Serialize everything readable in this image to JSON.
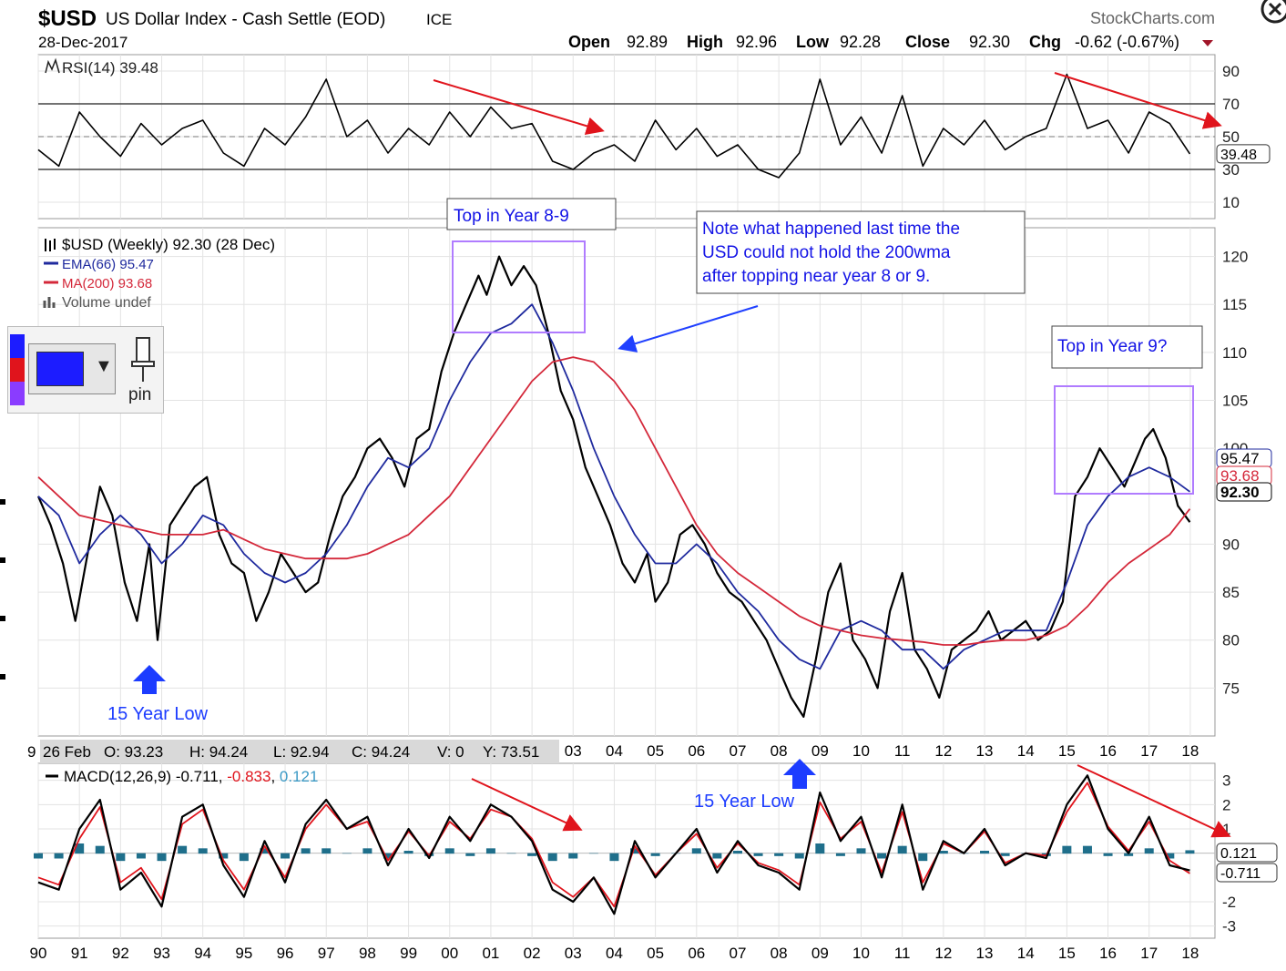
{
  "header": {
    "symbol": "$USD",
    "name": "US Dollar Index - Cash Settle (EOD)",
    "exchange": "ICE",
    "date": "28-Dec-2017",
    "brand": "StockCharts.com",
    "ohlc": {
      "open_label": "Open",
      "open": "92.89",
      "high_label": "High",
      "high": "92.96",
      "low_label": "Low",
      "low": "92.28",
      "close_label": "Close",
      "close": "92.30",
      "chg_label": "Chg",
      "chg": "-0.62 (-0.67%)"
    }
  },
  "toolbar": {
    "pin_label": "pin",
    "colors": [
      "#1c1cff",
      "#e0141c",
      "#8a3cff"
    ]
  },
  "chart_data": [
    {
      "id": "rsi",
      "type": "line",
      "title": "RSI(14) 39.48",
      "ylim": [
        0,
        100
      ],
      "ticks": [
        "90",
        "70",
        "50",
        "30",
        "10"
      ],
      "tick_values": [
        90,
        70,
        50,
        30,
        10
      ],
      "reference_lines": [
        70,
        30
      ],
      "midline": 50,
      "last_value_label": "39.48",
      "x": [
        1990.0,
        1990.5,
        1991.0,
        1991.5,
        1992.0,
        1992.5,
        1993.0,
        1993.5,
        1994.0,
        1994.5,
        1995.0,
        1995.5,
        1996.0,
        1996.5,
        1997.0,
        1997.5,
        1998.0,
        1998.5,
        1999.0,
        1999.5,
        2000.0,
        2000.5,
        2001.0,
        2001.5,
        2002.0,
        2002.5,
        2003.0,
        2003.5,
        2004.0,
        2004.5,
        2005.0,
        2005.5,
        2006.0,
        2006.5,
        2007.0,
        2007.5,
        2008.0,
        2008.5,
        2009.0,
        2009.5,
        2010.0,
        2010.5,
        2011.0,
        2011.5,
        2012.0,
        2012.5,
        2013.0,
        2013.5,
        2014.0,
        2014.5,
        2015.0,
        2015.5,
        2016.0,
        2016.5,
        2017.0,
        2017.5,
        2017.99
      ],
      "values": [
        42,
        32,
        65,
        50,
        38,
        58,
        45,
        55,
        60,
        40,
        32,
        55,
        45,
        62,
        85,
        50,
        60,
        40,
        55,
        45,
        65,
        50,
        68,
        55,
        58,
        35,
        30,
        40,
        45,
        35,
        60,
        42,
        55,
        38,
        45,
        30,
        25,
        40,
        85,
        45,
        62,
        40,
        75,
        32,
        55,
        45,
        60,
        42,
        50,
        55,
        88,
        55,
        60,
        40,
        65,
        58,
        39.48
      ]
    },
    {
      "id": "price",
      "type": "line",
      "title": "$USD (Weekly) 92.30 (28 Dec)",
      "ylim": [
        70,
        123
      ],
      "ticks": [
        "120",
        "115",
        "110",
        "105",
        "100",
        "90",
        "85",
        "80",
        "75"
      ],
      "tick_values": [
        120,
        115,
        110,
        105,
        100,
        90,
        85,
        80,
        75
      ],
      "x_ticks": [
        "90",
        "91",
        "92",
        "93",
        "94",
        "95",
        "96",
        "97",
        "98",
        "99",
        "00",
        "01",
        "02",
        "03",
        "04",
        "05",
        "06",
        "07",
        "08",
        "09",
        "10",
        "11",
        "12",
        "13",
        "14",
        "15",
        "16",
        "17",
        "18"
      ],
      "x_tick_values": [
        1990,
        1991,
        1992,
        1993,
        1994,
        1995,
        1996,
        1997,
        1998,
        1999,
        2000,
        2001,
        2002,
        2003,
        2004,
        2005,
        2006,
        2007,
        2008,
        2009,
        2010,
        2011,
        2012,
        2013,
        2014,
        2015,
        2016,
        2017,
        2018
      ],
      "legend": [
        {
          "label": "$USD (Weekly) 92.30 (28 Dec)",
          "color": "#000000"
        },
        {
          "label": "EMA(66) 95.47",
          "color": "#1f2a9e"
        },
        {
          "label": "MA(200) 93.68",
          "color": "#d4283a"
        },
        {
          "label": "Volume undef",
          "color": "#555555"
        }
      ],
      "price_labels": [
        "95.47",
        "93.68",
        "92.30"
      ],
      "series": [
        {
          "name": "$USD (Weekly)",
          "color": "#000000",
          "x": [
            1990.0,
            1990.3,
            1990.6,
            1990.9,
            1991.2,
            1991.5,
            1991.8,
            1992.1,
            1992.4,
            1992.7,
            1992.9,
            1993.2,
            1993.5,
            1993.8,
            1994.1,
            1994.4,
            1994.7,
            1995.0,
            1995.3,
            1995.6,
            1995.9,
            1996.2,
            1996.5,
            1996.8,
            1997.1,
            1997.4,
            1997.7,
            1998.0,
            1998.3,
            1998.6,
            1998.9,
            1999.2,
            1999.5,
            1999.8,
            2000.1,
            2000.4,
            2000.7,
            2000.9,
            2001.2,
            2001.5,
            2001.8,
            2002.1,
            2002.4,
            2002.7,
            2003.0,
            2003.3,
            2003.6,
            2003.9,
            2004.2,
            2004.5,
            2004.8,
            2005.0,
            2005.3,
            2005.6,
            2005.9,
            2006.2,
            2006.5,
            2006.8,
            2007.1,
            2007.4,
            2007.7,
            2008.0,
            2008.3,
            2008.6,
            2008.9,
            2009.2,
            2009.5,
            2009.8,
            2010.1,
            2010.4,
            2010.7,
            2011.0,
            2011.3,
            2011.6,
            2011.9,
            2012.2,
            2012.5,
            2012.8,
            2013.1,
            2013.4,
            2013.7,
            2014.0,
            2014.3,
            2014.6,
            2014.9,
            2015.2,
            2015.5,
            2015.8,
            2016.1,
            2016.4,
            2016.7,
            2016.9,
            2017.1,
            2017.4,
            2017.7,
            2017.99
          ],
          "values": [
            95,
            92,
            88,
            82,
            89,
            96,
            93,
            86,
            82,
            90,
            80,
            92,
            94,
            96,
            97,
            91,
            88,
            87,
            82,
            85,
            89,
            87,
            85,
            86,
            91,
            95,
            97,
            100,
            101,
            99,
            96,
            101,
            102,
            108,
            112,
            115,
            118,
            116,
            120,
            117,
            119,
            117,
            112,
            106,
            103,
            98,
            95,
            92,
            88,
            86,
            89,
            84,
            86,
            91,
            92,
            90,
            87,
            85,
            84,
            82,
            80,
            77,
            74,
            72,
            78,
            85,
            88,
            80,
            78,
            75,
            83,
            87,
            79,
            77,
            74,
            79,
            80,
            81,
            83,
            80,
            81,
            82,
            80,
            81,
            84,
            95,
            97,
            100,
            98,
            96,
            99,
            101,
            102,
            99,
            94,
            92.3
          ]
        },
        {
          "name": "EMA(66)",
          "color": "#1f2a9e",
          "x": [
            1990.0,
            1990.5,
            1991.0,
            1991.5,
            1992.0,
            1992.5,
            1993.0,
            1993.5,
            1994.0,
            1994.5,
            1995.0,
            1995.5,
            1996.0,
            1996.5,
            1997.0,
            1997.5,
            1998.0,
            1998.5,
            1999.0,
            1999.5,
            2000.0,
            2000.5,
            2001.0,
            2001.5,
            2002.0,
            2002.5,
            2003.0,
            2003.5,
            2004.0,
            2004.5,
            2005.0,
            2005.5,
            2006.0,
            2006.5,
            2007.0,
            2007.5,
            2008.0,
            2008.5,
            2009.0,
            2009.5,
            2010.0,
            2010.5,
            2011.0,
            2011.5,
            2012.0,
            2012.5,
            2013.0,
            2013.5,
            2014.0,
            2014.5,
            2015.0,
            2015.5,
            2016.0,
            2016.5,
            2017.0,
            2017.5,
            2017.99
          ],
          "values": [
            95,
            93,
            88,
            91,
            93,
            91,
            88,
            90,
            93,
            92,
            89,
            87,
            86,
            87,
            89,
            92,
            96,
            99,
            98,
            100,
            105,
            109,
            112,
            113,
            115,
            111,
            106,
            100,
            95,
            91,
            88,
            88,
            90,
            88,
            85,
            83,
            80,
            78,
            77,
            81,
            82,
            81,
            79,
            79,
            77,
            79,
            80,
            81,
            81,
            81,
            86,
            92,
            95,
            97,
            98,
            97,
            95.47
          ]
        },
        {
          "name": "MA(200)",
          "color": "#d4283a",
          "x": [
            1990.0,
            1990.5,
            1991.0,
            1991.5,
            1992.0,
            1992.5,
            1993.0,
            1993.5,
            1994.0,
            1994.5,
            1995.0,
            1995.5,
            1996.0,
            1996.5,
            1997.0,
            1997.5,
            1998.0,
            1998.5,
            1999.0,
            1999.5,
            2000.0,
            2000.5,
            2001.0,
            2001.5,
            2002.0,
            2002.5,
            2003.0,
            2003.5,
            2004.0,
            2004.5,
            2005.0,
            2005.5,
            2006.0,
            2006.5,
            2007.0,
            2007.5,
            2008.0,
            2008.5,
            2009.0,
            2009.5,
            2010.0,
            2010.5,
            2011.0,
            2011.5,
            2012.0,
            2012.5,
            2013.0,
            2013.5,
            2014.0,
            2014.5,
            2015.0,
            2015.5,
            2016.0,
            2016.5,
            2017.0,
            2017.5,
            2017.99
          ],
          "values": [
            97,
            95,
            93,
            92.5,
            92,
            91.5,
            91,
            91,
            91,
            91.5,
            90.5,
            89.5,
            89,
            88.5,
            88.5,
            88.5,
            89,
            90,
            91,
            93,
            95,
            98,
            101,
            104,
            107,
            109,
            109.5,
            109,
            107,
            104,
            100,
            96,
            92,
            89,
            87,
            85.5,
            84,
            82.5,
            81.5,
            81,
            80.5,
            80.2,
            80,
            79.8,
            79.5,
            79.5,
            79.8,
            80,
            80,
            80.5,
            81.5,
            83.5,
            86,
            88,
            89.5,
            91,
            93.68
          ]
        }
      ]
    },
    {
      "id": "macd",
      "type": "line",
      "title": "MACD(12,26,9)",
      "macd_label": "-0.711",
      "signal_label": "-0.833",
      "hist_label": "0.121",
      "ylim": [
        -3.5,
        3.7
      ],
      "ticks": [
        "3",
        "2",
        "1",
        "-2",
        "-3"
      ],
      "tick_values": [
        3,
        2,
        1,
        -2,
        -3
      ],
      "last_value_labels": [
        "0.121",
        "-0.711"
      ],
      "x_ticks": [
        "90",
        "91",
        "92",
        "93",
        "94",
        "95",
        "96",
        "97",
        "98",
        "99",
        "00",
        "01",
        "02",
        "03",
        "04",
        "05",
        "06",
        "07",
        "08",
        "09",
        "10",
        "11",
        "12",
        "13",
        "14",
        "15",
        "16",
        "17",
        "18"
      ],
      "x_tick_values": [
        1990,
        1991,
        1992,
        1993,
        1994,
        1995,
        1996,
        1997,
        1998,
        1999,
        2000,
        2001,
        2002,
        2003,
        2004,
        2005,
        2006,
        2007,
        2008,
        2009,
        2010,
        2011,
        2012,
        2013,
        2014,
        2015,
        2016,
        2017,
        2018
      ],
      "x": [
        1990.0,
        1990.5,
        1991.0,
        1991.5,
        1992.0,
        1992.5,
        1993.0,
        1993.5,
        1994.0,
        1994.5,
        1995.0,
        1995.5,
        1996.0,
        1996.5,
        1997.0,
        1997.5,
        1998.0,
        1998.5,
        1999.0,
        1999.5,
        2000.0,
        2000.5,
        2001.0,
        2001.5,
        2002.0,
        2002.5,
        2003.0,
        2003.5,
        2004.0,
        2004.5,
        2005.0,
        2005.5,
        2006.0,
        2006.5,
        2007.0,
        2007.5,
        2008.0,
        2008.5,
        2009.0,
        2009.5,
        2010.0,
        2010.5,
        2011.0,
        2011.5,
        2012.0,
        2012.5,
        2013.0,
        2013.5,
        2014.0,
        2014.5,
        2015.0,
        2015.5,
        2016.0,
        2016.5,
        2017.0,
        2017.5,
        2017.99
      ],
      "macd": [
        -1.2,
        -1.5,
        1.0,
        2.2,
        -1.5,
        -0.8,
        -2.2,
        1.5,
        2.0,
        -0.5,
        -1.8,
        0.5,
        -1.2,
        1.2,
        2.2,
        1.0,
        1.5,
        -0.5,
        1.0,
        -0.2,
        1.5,
        0.5,
        2.0,
        1.5,
        0.5,
        -1.5,
        -2.0,
        -1.0,
        -2.5,
        0.5,
        -1.0,
        0.0,
        1.0,
        -0.8,
        0.5,
        -0.5,
        -0.8,
        -1.5,
        2.5,
        0.5,
        1.5,
        -1.0,
        2.0,
        -1.5,
        0.5,
        0.0,
        1.0,
        -0.5,
        0.0,
        -0.2,
        2.0,
        3.2,
        1.0,
        0.0,
        1.5,
        -0.5,
        -0.711
      ],
      "signal": [
        -1.0,
        -1.3,
        0.6,
        1.9,
        -1.2,
        -0.6,
        -1.9,
        1.2,
        1.8,
        -0.3,
        -1.5,
        0.3,
        -1.0,
        1.0,
        2.0,
        1.0,
        1.3,
        -0.3,
        0.9,
        -0.1,
        1.3,
        0.6,
        1.8,
        1.5,
        0.6,
        -1.2,
        -1.8,
        -1.0,
        -2.2,
        0.3,
        -0.9,
        0.0,
        0.8,
        -0.6,
        0.4,
        -0.4,
        -0.7,
        -1.3,
        2.1,
        0.6,
        1.3,
        -0.8,
        1.7,
        -1.2,
        0.4,
        0.0,
        0.9,
        -0.4,
        0.0,
        -0.1,
        1.7,
        2.9,
        1.1,
        0.1,
        1.3,
        -0.3,
        -0.833
      ],
      "histogram": [
        -0.2,
        -0.2,
        0.4,
        0.3,
        -0.3,
        -0.2,
        -0.3,
        0.3,
        0.2,
        -0.2,
        -0.3,
        0.2,
        -0.2,
        0.2,
        0.2,
        0.0,
        0.2,
        -0.2,
        0.1,
        -0.1,
        0.2,
        -0.1,
        0.2,
        0.0,
        -0.1,
        -0.3,
        -0.2,
        0.0,
        -0.3,
        0.2,
        -0.1,
        0.0,
        0.2,
        -0.2,
        0.1,
        -0.1,
        -0.1,
        -0.2,
        0.4,
        -0.1,
        0.2,
        -0.2,
        0.3,
        -0.3,
        0.1,
        0.0,
        0.1,
        -0.1,
        0.0,
        -0.1,
        0.3,
        0.3,
        -0.1,
        -0.1,
        0.2,
        -0.2,
        0.121
      ]
    }
  ],
  "annotations": {
    "top_year_8_9": "Top in Year 8-9",
    "note_line1": "Note what happened last time the",
    "note_line2": "USD could not hold the 200wma",
    "note_line3": "after topping near year 8 or 9.",
    "top_year_9": "Top in Year 9?",
    "low_1": "15 Year Low",
    "low_2": "15 Year Low"
  },
  "hover_readout": {
    "date_prefix": "9",
    "date": "26 Feb",
    "o": "O: 93.23",
    "h": "H: 94.24",
    "l": "L: 92.94",
    "c": "C: 94.24",
    "v": "V: 0",
    "y": "Y: 73.51"
  },
  "colors": {
    "price": "#000000",
    "ema": "#1f2a9e",
    "ma": "#d4283a",
    "macd_signal": "#e0141c",
    "histogram": "#1f6f8b",
    "annotation": "#1414e6",
    "box": "#b07cff",
    "arrow_red": "#e0141c",
    "arrow_blue": "#2040ff",
    "rsi_fill": "#4c8c4a"
  }
}
